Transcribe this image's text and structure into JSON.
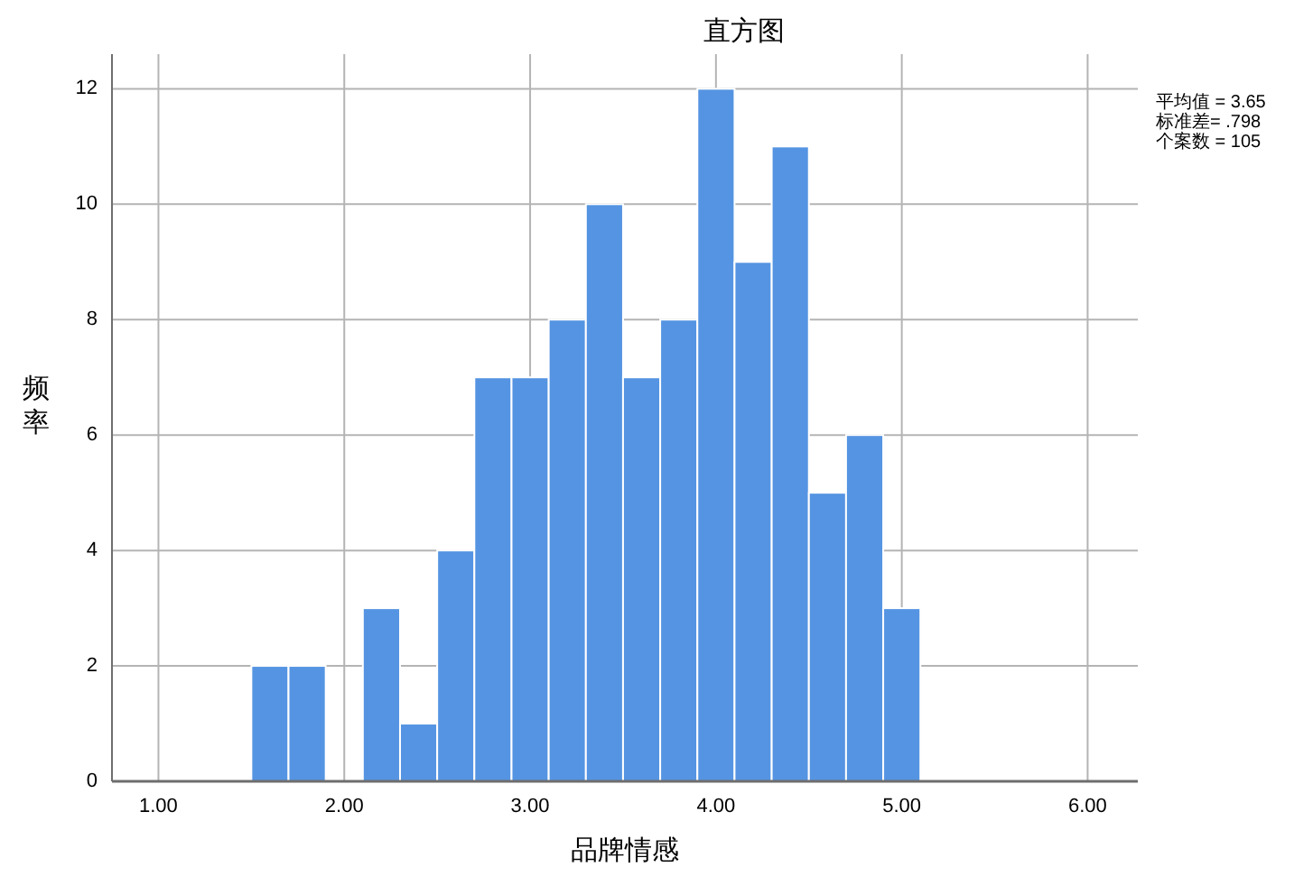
{
  "chart_data": {
    "type": "histogram",
    "title": "直方图",
    "xlabel": "品牌情感",
    "ylabel": "频率",
    "bins": [
      1.5,
      1.7,
      1.9,
      2.1,
      2.3,
      2.5,
      2.7,
      2.9,
      3.1,
      3.3,
      3.5,
      3.7,
      3.9,
      4.1,
      4.3,
      4.5,
      4.7,
      4.9,
      5.1
    ],
    "values": [
      2,
      2,
      0,
      3,
      1,
      4,
      7,
      7,
      8,
      10,
      7,
      8,
      12,
      9,
      11,
      5,
      6,
      3
    ],
    "color": "#5594e2",
    "xlim": [
      0.75,
      6.27
    ],
    "ylim": [
      0,
      12.6
    ],
    "xticks": [
      {
        "value": 1,
        "label": "1.00"
      },
      {
        "value": 2,
        "label": "2.00"
      },
      {
        "value": 3,
        "label": "3.00"
      },
      {
        "value": 4,
        "label": "4.00"
      },
      {
        "value": 5,
        "label": "5.00"
      },
      {
        "value": 6,
        "label": "6.00"
      }
    ],
    "yticks": [
      0,
      2,
      4,
      6,
      8,
      10,
      12
    ],
    "grid": true,
    "annotations": [
      "平均值 = 3.65",
      "标准差= .798",
      "个案数 = 105"
    ]
  }
}
